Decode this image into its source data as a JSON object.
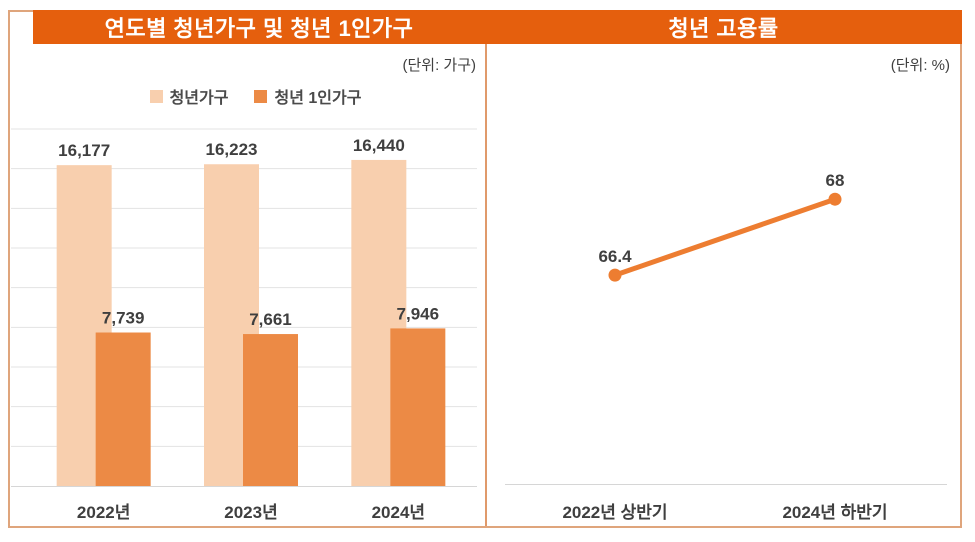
{
  "colors": {
    "header_bg": "#E55F0D",
    "box_border": "#DFA57C",
    "divider": "#E09A6B",
    "gridline": "#E3E3E3",
    "axis_line": "#D6D6D6",
    "text_dark": "#3F3F3F",
    "title_text": "#FFFFFF",
    "series_light": "#F8CFAE",
    "series_dark": "#EC8A45",
    "line_series": "#ED7D31"
  },
  "chart_data": [
    {
      "type": "bar",
      "title": "연도별 청년가구 및 청년 1인가구",
      "unit_label": "(단위: 가구)",
      "categories": [
        "2022년",
        "2023년",
        "2024년"
      ],
      "series": [
        {
          "name": "청년가구",
          "values": [
            16177,
            16223,
            16440
          ],
          "labels": [
            "16,177",
            "16,223",
            "16,440"
          ],
          "color": "#F8CFAE"
        },
        {
          "name": "청년 1인가구",
          "values": [
            7739,
            7661,
            7946
          ],
          "labels": [
            "7,739",
            "7,661",
            "7,946"
          ],
          "color": "#EC8A45"
        }
      ],
      "xlabel": "",
      "ylabel": "",
      "ylim": [
        0,
        18000
      ],
      "grid_step": 2000,
      "grid": true,
      "legend_position": "top-center"
    },
    {
      "type": "line",
      "title": "청년 고용률",
      "unit_label": "(단위: %)",
      "categories": [
        "2022년 상반기",
        "2024년 하반기"
      ],
      "values": [
        66.4,
        68
      ],
      "labels": [
        "66.4",
        "68"
      ],
      "color": "#ED7D31",
      "xlabel": "",
      "ylabel": "",
      "ylim": [
        62,
        69.5
      ],
      "grid": false,
      "legend_position": "none"
    }
  ]
}
